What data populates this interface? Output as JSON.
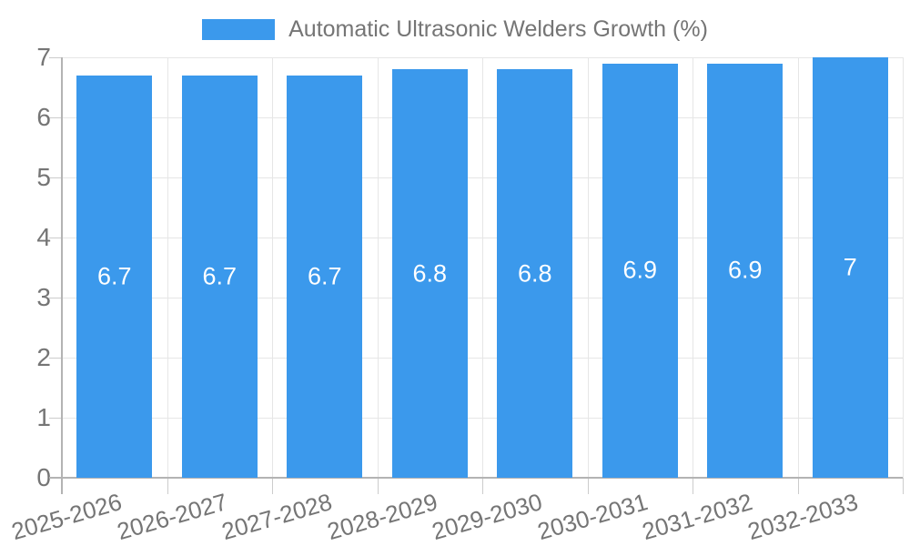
{
  "chart_data": {
    "type": "bar",
    "title": "",
    "legend": "Automatic Ultrasonic Welders Growth (%)",
    "legend_position": "top-center",
    "categories": [
      "2025-2026",
      "2026-2027",
      "2027-2028",
      "2028-2029",
      "2029-2030",
      "2030-2031",
      "2031-2032",
      "2032-2033"
    ],
    "values": [
      6.7,
      6.7,
      6.7,
      6.8,
      6.8,
      6.9,
      6.9,
      7
    ],
    "value_labels": [
      "6.7",
      "6.7",
      "6.7",
      "6.8",
      "6.8",
      "6.9",
      "6.9",
      "7"
    ],
    "xlabel": "",
    "ylabel": "",
    "ylim": [
      0,
      7
    ],
    "yticks": [
      0,
      1,
      2,
      3,
      4,
      5,
      6,
      7
    ],
    "grid": true,
    "colors": {
      "bar": "#3B99EC",
      "axis_label": "#757575",
      "legend_text": "#757575",
      "value_label": "#ffffff",
      "gridline": "#e6e6e6",
      "axis_line": "#b3b3b3",
      "tick": "#cccccc",
      "background": "#ffffff"
    }
  }
}
